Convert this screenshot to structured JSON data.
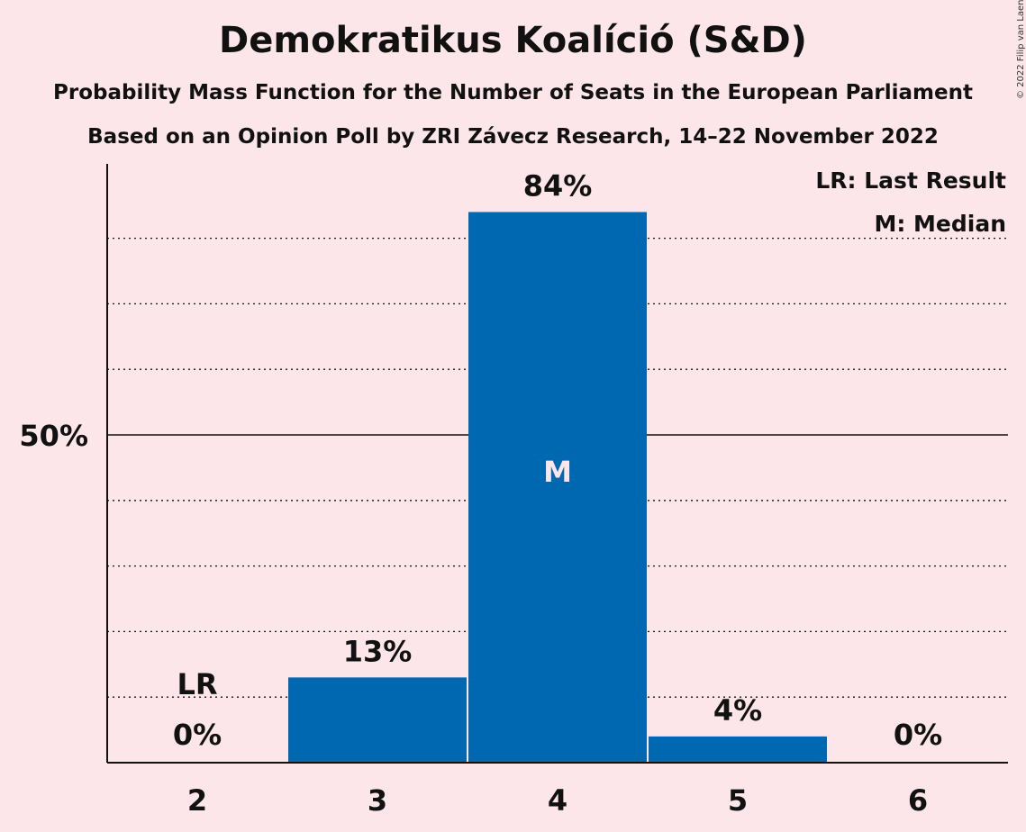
{
  "title": "Demokratikus Koalíció (S&D)",
  "subtitle": "Probability Mass Function for the Number of Seats in the European Parliament",
  "subtitle2": "Based on an Opinion Poll by ZRI Závecz Research, 14–22 November 2022",
  "copyright": "© 2022 Filip van Laenen",
  "colors": {
    "bar": "#0068b0",
    "background": "#fce6e9"
  },
  "chart_data": {
    "type": "bar",
    "categories": [
      "2",
      "3",
      "4",
      "5",
      "6"
    ],
    "values": [
      0,
      13,
      84,
      4,
      0
    ],
    "value_labels": [
      "0%",
      "13%",
      "84%",
      "4%",
      "0%"
    ],
    "ylim": [
      0,
      90
    ],
    "y_ticks": [
      {
        "value": 50,
        "label": "50%"
      }
    ],
    "gridlines": [
      10,
      20,
      30,
      40,
      50,
      60,
      70,
      80
    ],
    "median_category": "4",
    "median_label": "M",
    "last_result_category": "2",
    "last_result_label": "LR",
    "legend": [
      "LR: Last Result",
      "M: Median"
    ],
    "legend_position": "top-right"
  }
}
